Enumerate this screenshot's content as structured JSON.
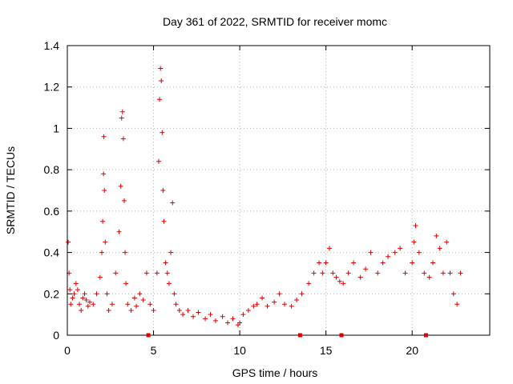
{
  "chart_data": {
    "type": "scatter",
    "title": "Day 361 of 2022, SRMTID for receiver momc",
    "xlabel": "GPS time / hours",
    "ylabel": "SRMTID / TECUs",
    "xlim": [
      0,
      24.5
    ],
    "ylim": [
      0,
      1.4
    ],
    "xticks": [
      0,
      5,
      10,
      15,
      20
    ],
    "xtick_labels": [
      "0",
      "5",
      "10",
      "15",
      "20"
    ],
    "yticks": [
      0,
      0.2,
      0.4,
      0.6,
      0.8,
      1,
      1.2,
      1.4
    ],
    "ytick_labels": [
      "0",
      "0.2",
      "0.4",
      "0.6",
      "0.8",
      "1",
      "1.2",
      "1.4"
    ],
    "grid": true,
    "marker": "+",
    "colors": {
      "series": "#dd0000",
      "grid": "#b0b0b0",
      "axis": "#000000"
    },
    "gap_markers_x": [
      4.7,
      13.5,
      15.9,
      20.8
    ],
    "series": [
      {
        "name": "momc",
        "x": [
          0.05,
          0.1,
          0.15,
          0.2,
          0.3,
          0.4,
          0.5,
          0.6,
          0.7,
          0.8,
          0.9,
          1.0,
          1.1,
          1.2,
          1.3,
          1.5,
          1.7,
          1.9,
          2.0,
          2.05,
          2.1,
          2.12,
          2.15,
          2.2,
          2.3,
          2.4,
          2.6,
          2.8,
          3.0,
          3.1,
          3.15,
          3.2,
          3.25,
          3.3,
          3.35,
          3.4,
          3.5,
          3.7,
          3.9,
          4.0,
          4.2,
          4.4,
          4.6,
          4.8,
          5.0,
          5.2,
          5.3,
          5.35,
          5.4,
          5.45,
          5.5,
          5.55,
          5.6,
          5.7,
          5.8,
          5.9,
          6.0,
          6.1,
          6.2,
          6.3,
          6.5,
          6.7,
          7.0,
          7.3,
          7.6,
          8.0,
          8.3,
          8.6,
          9.0,
          9.3,
          9.6,
          9.9,
          10.0,
          10.2,
          10.5,
          10.8,
          11.0,
          11.3,
          11.6,
          12.0,
          12.3,
          12.6,
          13.0,
          13.3,
          13.6,
          14.0,
          14.3,
          14.6,
          14.8,
          15.0,
          15.2,
          15.4,
          15.6,
          15.8,
          16.0,
          16.3,
          16.6,
          17.0,
          17.3,
          17.6,
          18.0,
          18.3,
          18.6,
          19.0,
          19.3,
          19.6,
          20.0,
          20.1,
          20.2,
          20.4,
          20.7,
          21.0,
          21.2,
          21.4,
          21.6,
          21.8,
          22.0,
          22.2,
          22.4,
          22.6,
          22.8
        ],
        "y": [
          0.45,
          0.3,
          0.22,
          0.15,
          0.18,
          0.2,
          0.25,
          0.22,
          0.15,
          0.12,
          0.18,
          0.2,
          0.17,
          0.14,
          0.16,
          0.15,
          0.2,
          0.28,
          0.4,
          0.55,
          0.78,
          0.96,
          0.7,
          0.45,
          0.2,
          0.12,
          0.15,
          0.3,
          0.5,
          0.72,
          1.05,
          1.08,
          0.95,
          0.65,
          0.4,
          0.25,
          0.15,
          0.12,
          0.18,
          0.14,
          0.2,
          0.17,
          0.3,
          0.15,
          0.12,
          0.3,
          0.84,
          1.14,
          1.29,
          1.23,
          0.98,
          0.7,
          0.55,
          0.35,
          0.3,
          0.25,
          0.4,
          0.64,
          0.2,
          0.15,
          0.12,
          0.1,
          0.12,
          0.09,
          0.11,
          0.08,
          0.1,
          0.07,
          0.09,
          0.06,
          0.08,
          0.05,
          0.06,
          0.1,
          0.12,
          0.14,
          0.15,
          0.18,
          0.14,
          0.16,
          0.2,
          0.15,
          0.14,
          0.17,
          0.2,
          0.25,
          0.3,
          0.35,
          0.3,
          0.35,
          0.42,
          0.3,
          0.28,
          0.26,
          0.25,
          0.3,
          0.35,
          0.28,
          0.32,
          0.4,
          0.3,
          0.35,
          0.38,
          0.4,
          0.42,
          0.3,
          0.35,
          0.45,
          0.53,
          0.4,
          0.3,
          0.28,
          0.35,
          0.48,
          0.42,
          0.3,
          0.45,
          0.3,
          0.2,
          0.15,
          0.3
        ]
      }
    ]
  }
}
